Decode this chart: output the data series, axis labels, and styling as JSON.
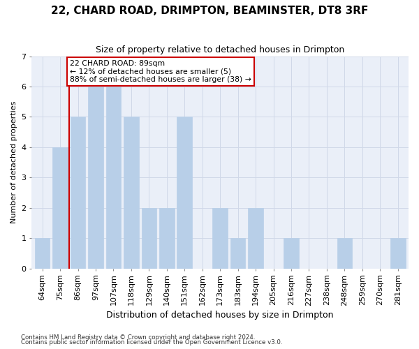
{
  "title": "22, CHARD ROAD, DRIMPTON, BEAMINSTER, DT8 3RF",
  "subtitle": "Size of property relative to detached houses in Drimpton",
  "xlabel": "Distribution of detached houses by size in Drimpton",
  "ylabel": "Number of detached properties",
  "categories": [
    "64sqm",
    "75sqm",
    "86sqm",
    "97sqm",
    "107sqm",
    "118sqm",
    "129sqm",
    "140sqm",
    "151sqm",
    "162sqm",
    "173sqm",
    "183sqm",
    "194sqm",
    "205sqm",
    "216sqm",
    "227sqm",
    "238sqm",
    "248sqm",
    "259sqm",
    "270sqm",
    "281sqm"
  ],
  "values": [
    1,
    4,
    5,
    6,
    6,
    5,
    2,
    2,
    5,
    0,
    2,
    1,
    2,
    0,
    1,
    0,
    0,
    1,
    0,
    0,
    1
  ],
  "bar_color": "#b8cfe8",
  "bar_edgecolor": "#b8cfe8",
  "vline_x": 2.0,
  "annotation_text_line1": "22 CHARD ROAD: 89sqm",
  "annotation_text_line2": "← 12% of detached houses are smaller (5)",
  "annotation_text_line3": "88% of semi-detached houses are larger (38) →",
  "annotation_box_facecolor": "#ffffff",
  "annotation_box_edgecolor": "#cc0000",
  "vline_color": "#cc0000",
  "ylim": [
    0,
    7
  ],
  "yticks": [
    0,
    1,
    2,
    3,
    4,
    5,
    6,
    7
  ],
  "grid_color": "#d0d8e8",
  "bg_color": "#eaeff8",
  "fig_facecolor": "#ffffff",
  "title_fontsize": 11,
  "subtitle_fontsize": 9,
  "tick_fontsize": 8,
  "ylabel_fontsize": 8,
  "xlabel_fontsize": 9,
  "footnote1": "Contains HM Land Registry data © Crown copyright and database right 2024.",
  "footnote2": "Contains public sector information licensed under the Open Government Licence v3.0."
}
